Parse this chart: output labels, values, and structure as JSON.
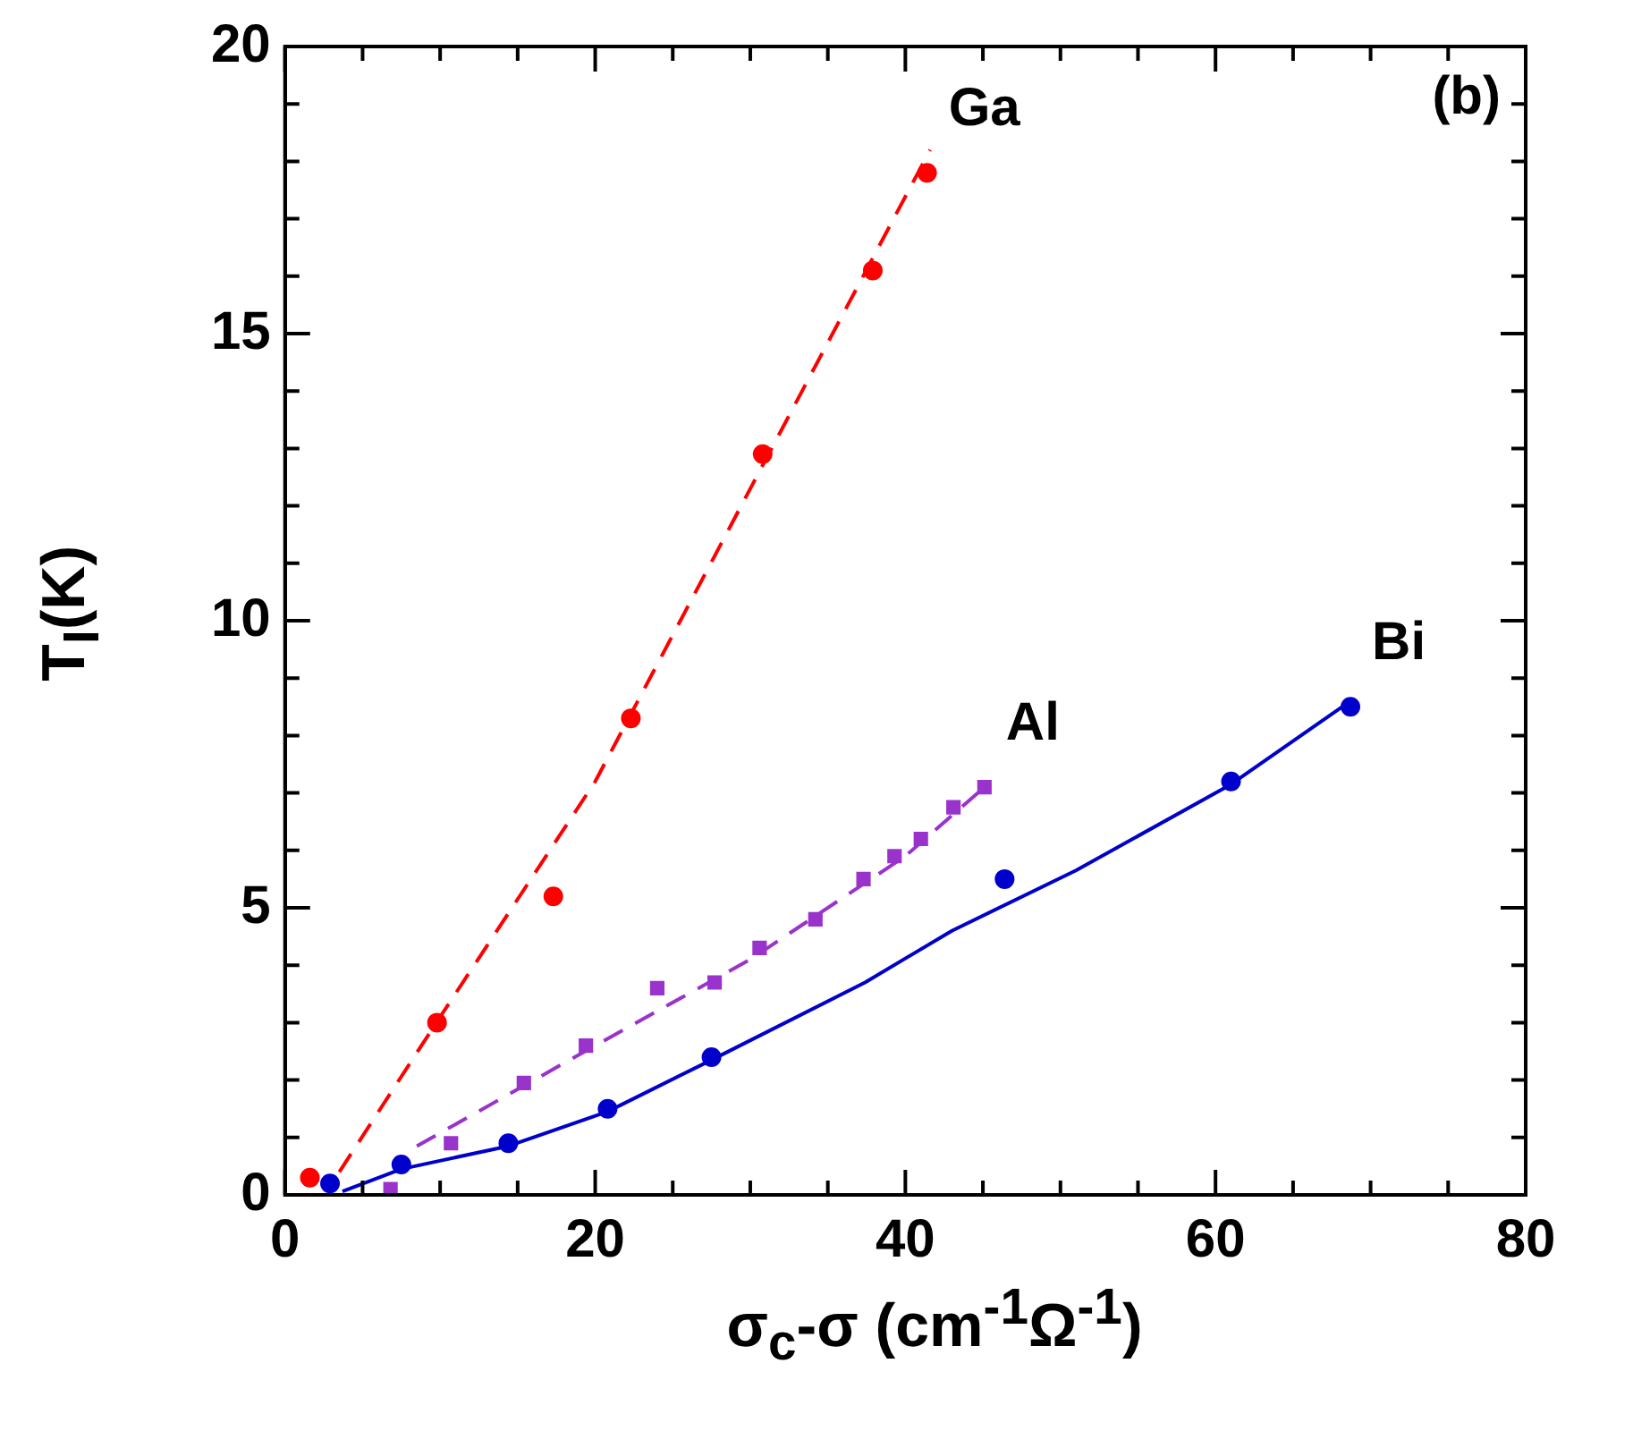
{
  "chart_data": {
    "type": "scatter",
    "xlabel": "σ$_{c}$-σ (cm$^{-1}$Ω$^{-1}$)",
    "ylabel": "T$_{I}$(K)",
    "annotations": [
      "(b)"
    ],
    "xlim": [
      0,
      80
    ],
    "ylim": [
      0,
      20
    ],
    "xticks": [
      0,
      {
        "value": 5,
        "label": null
      },
      20,
      {
        "value": 10,
        "label": null
      },
      {
        "value": 15,
        "label": null
      },
      {
        "value": 25,
        "label": null
      },
      {
        "value": 30,
        "label": null
      },
      {
        "value": 35,
        "label": null
      },
      40,
      {
        "value": 45,
        "label": null
      },
      {
        "value": 50,
        "label": null
      },
      {
        "value": 55,
        "label": null
      },
      60,
      {
        "value": 65,
        "label": null
      },
      {
        "value": 70,
        "label": null
      },
      {
        "value": 75,
        "label": null
      },
      80
    ],
    "yticks": [
      0,
      {
        "value": 1,
        "label": null
      },
      {
        "value": 2,
        "label": null
      },
      {
        "value": 3,
        "label": null
      },
      {
        "value": 4,
        "label": null
      },
      5,
      {
        "value": 6,
        "label": null
      },
      {
        "value": 7,
        "label": null
      },
      {
        "value": 8,
        "label": null
      },
      {
        "value": 9,
        "label": null
      },
      10,
      {
        "value": 11,
        "label": null
      },
      {
        "value": 12,
        "label": null
      },
      {
        "value": 13,
        "label": null
      },
      {
        "value": 14,
        "label": null
      },
      15,
      {
        "value": 16,
        "label": null
      },
      {
        "value": 17,
        "label": null
      },
      {
        "value": 18,
        "label": null
      },
      {
        "value": 19,
        "label": null
      },
      20
    ],
    "grid": false,
    "legend": false,
    "series": [
      {
        "type": "line",
        "color": "#ff0000",
        "line_style": "dashed",
        "marker": "none",
        "x": [
          3.5,
          10,
          20,
          30,
          41.6
        ],
        "values": [
          0.4,
          3.1,
          7.2,
          12.3,
          18.2
        ]
      },
      {
        "type": "line",
        "color": "#9933cc",
        "line_style": "dashed",
        "marker": "none",
        "x": [
          8.5,
          20,
          30,
          40,
          45.1
        ],
        "values": [
          0.85,
          2.6,
          4.1,
          5.9,
          7.1
        ]
      },
      {
        "type": "line",
        "color": "#0000cc",
        "line_style": "solid",
        "marker": "none",
        "x": [
          3.7,
          7.5,
          14.4,
          20.8,
          27.5,
          37.4,
          43,
          51,
          61,
          68.7
        ],
        "values": [
          0.06,
          0.45,
          0.85,
          1.45,
          2.35,
          3.7,
          4.6,
          5.65,
          7.15,
          8.6
        ]
      },
      {
        "type": "scatter",
        "name": "Ga",
        "color": "#ff0000",
        "marker": "circle",
        "x": [
          1.6,
          9.8,
          17.3,
          22.3,
          30.8,
          37.9,
          41.4
        ],
        "values": [
          0.3,
          3.0,
          5.2,
          8.3,
          12.9,
          16.1,
          17.8
        ]
      },
      {
        "type": "scatter",
        "name": "Al",
        "color": "#9933cc",
        "marker": "square",
        "x": [
          6.8,
          10.7,
          15.4,
          19.4,
          24.0,
          27.7,
          30.6,
          34.2,
          37.3,
          39.3,
          41.0,
          43.1,
          45.1
        ],
        "values": [
          0.1,
          0.9,
          1.95,
          2.6,
          3.6,
          3.7,
          4.3,
          4.8,
          5.5,
          5.9,
          6.2,
          6.75,
          7.1
        ]
      },
      {
        "type": "scatter",
        "name": "Bi",
        "color": "#0000cc",
        "marker": "circle",
        "x": [
          2.9,
          7.5,
          14.4,
          20.8,
          27.5,
          46.4,
          61.0,
          68.7
        ],
        "values": [
          0.2,
          0.53,
          0.9,
          1.5,
          2.4,
          5.5,
          7.2,
          8.5
        ]
      }
    ]
  }
}
